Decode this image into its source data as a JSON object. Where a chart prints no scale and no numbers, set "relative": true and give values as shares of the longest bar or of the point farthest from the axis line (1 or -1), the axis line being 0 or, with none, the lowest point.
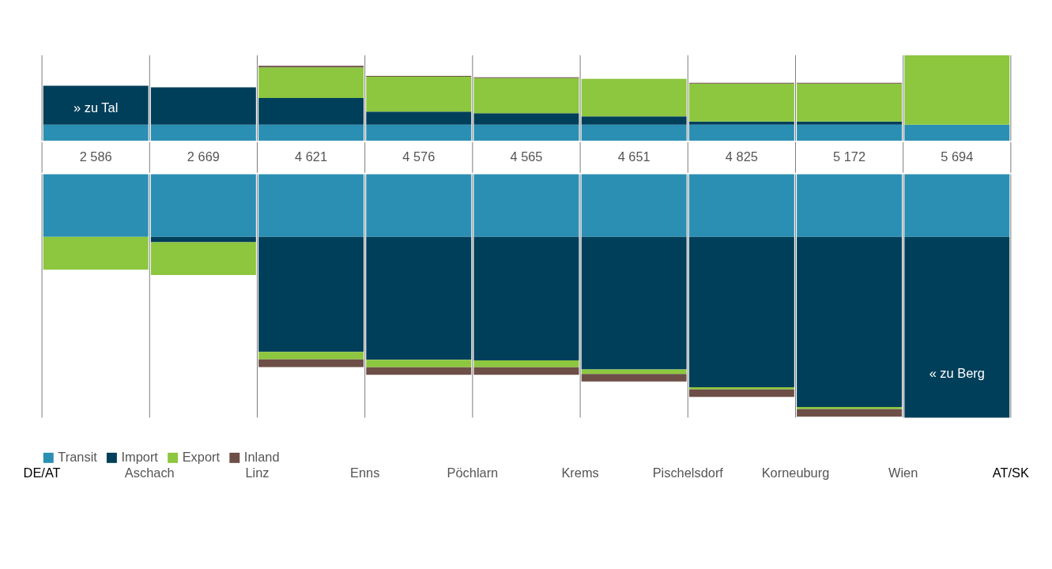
{
  "chart_data": [
    {
      "type": "bar",
      "relative": true,
      "stacked": true,
      "categories": [
        null,
        null,
        null,
        null,
        null,
        null,
        null,
        null,
        null
      ],
      "annotations": [
        "» zu Tal",
        "2 586",
        "2 669",
        "4 621",
        "4 576",
        "4 565",
        "4 651",
        "4 825",
        "5 172",
        "5 694"
      ],
      "series": [
        {
          "color": "#2b8fb3",
          "values": [
            0.188,
            0.188,
            0.188,
            0.188,
            0.188,
            0.188,
            0.188,
            0.188,
            0.188
          ]
        },
        {
          "color": "#003f5a",
          "values": [
            0.455,
            0.438,
            0.313,
            0.152,
            0.134,
            0.098,
            0.036,
            0.036,
            null
          ]
        },
        {
          "color": "#8dc63f",
          "values": [
            null,
            null,
            0.357,
            0.411,
            0.411,
            0.438,
            0.446,
            0.446,
            0.812
          ]
        },
        {
          "color": "#6d4f47",
          "values": [
            null,
            null,
            0.018,
            0.009,
            0.009,
            null,
            0.009,
            0.009,
            null
          ]
        }
      ]
    },
    {
      "type": "bar",
      "relative": true,
      "stacked": true,
      "legend": "bottom left",
      "categories": [
        null,
        null,
        null,
        null,
        null,
        null,
        null,
        null,
        null
      ],
      "annotations": [
        "« zu Berg",
        "DE/AT",
        "Aschach",
        "Linz",
        "Enns",
        "Pöchlarn",
        "Krems",
        "Pischelsdorf",
        "Korneuburg",
        "Wien",
        "AT/SK"
      ],
      "series": [
        {
          "name": "Transit",
          "color": "#2b8fb3",
          "values": [
            -0.257,
            -0.257,
            -0.257,
            -0.257,
            -0.257,
            -0.257,
            -0.257,
            -0.257,
            -0.257
          ]
        },
        {
          "name": "Import",
          "color": "#003f5a",
          "values": [
            null,
            -0.022,
            -0.473,
            -0.505,
            -0.508,
            -0.545,
            -0.618,
            -0.699,
            -0.743
          ]
        },
        {
          "name": "Export",
          "color": "#8dc63f",
          "values": [
            -0.135,
            -0.135,
            -0.031,
            -0.031,
            -0.028,
            -0.019,
            -0.009,
            -0.009,
            null
          ]
        },
        {
          "name": "Inland",
          "color": "#6d4f47",
          "values": [
            null,
            null,
            -0.031,
            -0.031,
            -0.031,
            -0.031,
            -0.031,
            -0.031,
            null
          ]
        }
      ]
    }
  ]
}
